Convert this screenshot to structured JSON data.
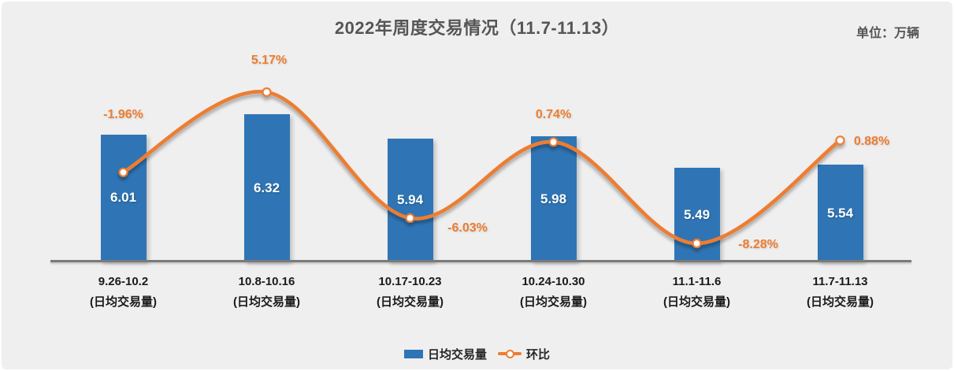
{
  "chart": {
    "title": "2022年周度交易情况（11.7-11.13）",
    "unit": "单位：万辆"
  },
  "legend": {
    "bar_label": "日均交易量",
    "line_label": "环比"
  },
  "colors": {
    "bar_blue": "#2F75B5",
    "line_orange": "#ED7D31",
    "background_gray": "#EFEFEF",
    "axis_gray": "#7A7A7A",
    "title_gray": "#555555",
    "bar_value_white": "#FFFFFF",
    "tick_black": "#1A1A1A"
  },
  "chart_data": {
    "type": "combo-bar-line",
    "title": "2022年周度交易情况（11.7-11.13）",
    "unit_annotation": "单位：万辆",
    "categories": [
      "9.26-10.2",
      "10.8-10.16",
      "10.17-10.23",
      "10.24-10.30",
      "11.1-11.6",
      "11.7-11.13"
    ],
    "category_sublabels": [
      "(日均交易量)",
      "(日均交易量)",
      "(日均交易量)",
      "(日均交易量)",
      "(日均交易量)",
      "(日均交易量)"
    ],
    "series": [
      {
        "name": "日均交易量",
        "type": "bar",
        "unit": "万辆",
        "values": [
          6.01,
          6.32,
          5.94,
          5.98,
          5.49,
          5.54
        ],
        "data_labels": [
          "6.01",
          "6.32",
          "5.94",
          "5.98",
          "5.49",
          "5.54"
        ],
        "color": "#2F75B5",
        "label_position": "inside-center"
      },
      {
        "name": "环比",
        "type": "smooth-line",
        "unit": "%",
        "values": [
          -1.96,
          5.17,
          -6.03,
          0.74,
          -8.28,
          0.88
        ],
        "data_labels": [
          "-1.96%",
          "5.17%",
          "-6.03%",
          "0.74%",
          "-8.28%",
          "0.88%"
        ],
        "color": "#ED7D31",
        "marker": "circle-white-fill-orange-ring"
      }
    ],
    "legend_position": "bottom",
    "grid": "off",
    "value_axis_visible": false,
    "bar_axis_range_estimate": [
      4.0,
      6.6
    ]
  }
}
